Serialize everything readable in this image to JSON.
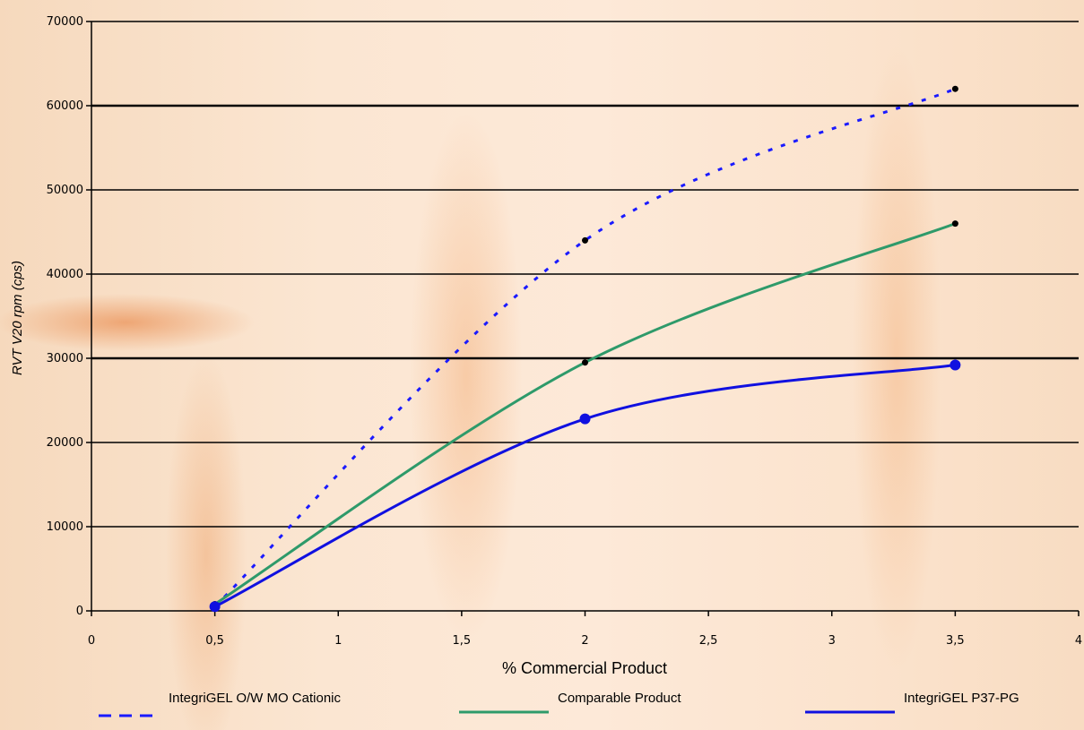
{
  "chart_data": {
    "type": "line",
    "title": "",
    "xlabel": "%  Commercial Product",
    "ylabel": "RVT V20 rpm (cps)",
    "xlim": [
      0,
      4
    ],
    "ylim": [
      0,
      70000
    ],
    "x_ticks": [
      "0",
      "0,5",
      "1",
      "1,5",
      "2",
      "2,5",
      "3",
      "3,5",
      "4"
    ],
    "y_ticks": [
      "0",
      "10000",
      "20000",
      "30000",
      "40000",
      "50000",
      "60000",
      "70000"
    ],
    "grid": "horizontal",
    "legend_position": "bottom",
    "series": [
      {
        "name": "IntegriGEL O/W MO Cationic",
        "color": "#1a1aff",
        "style": "dashed",
        "x": [
          0.5,
          2,
          3.5
        ],
        "y": [
          500,
          44000,
          62000
        ]
      },
      {
        "name": "Comparable Product",
        "color": "#2e9a6a",
        "style": "solid",
        "x": [
          0.5,
          2,
          3.5
        ],
        "y": [
          800,
          29500,
          46000
        ]
      },
      {
        "name": "IntegriGEL P37-PG",
        "color": "#1010e0",
        "style": "solid",
        "x": [
          0.5,
          2,
          3.5
        ],
        "y": [
          500,
          22800,
          29200
        ]
      }
    ]
  }
}
